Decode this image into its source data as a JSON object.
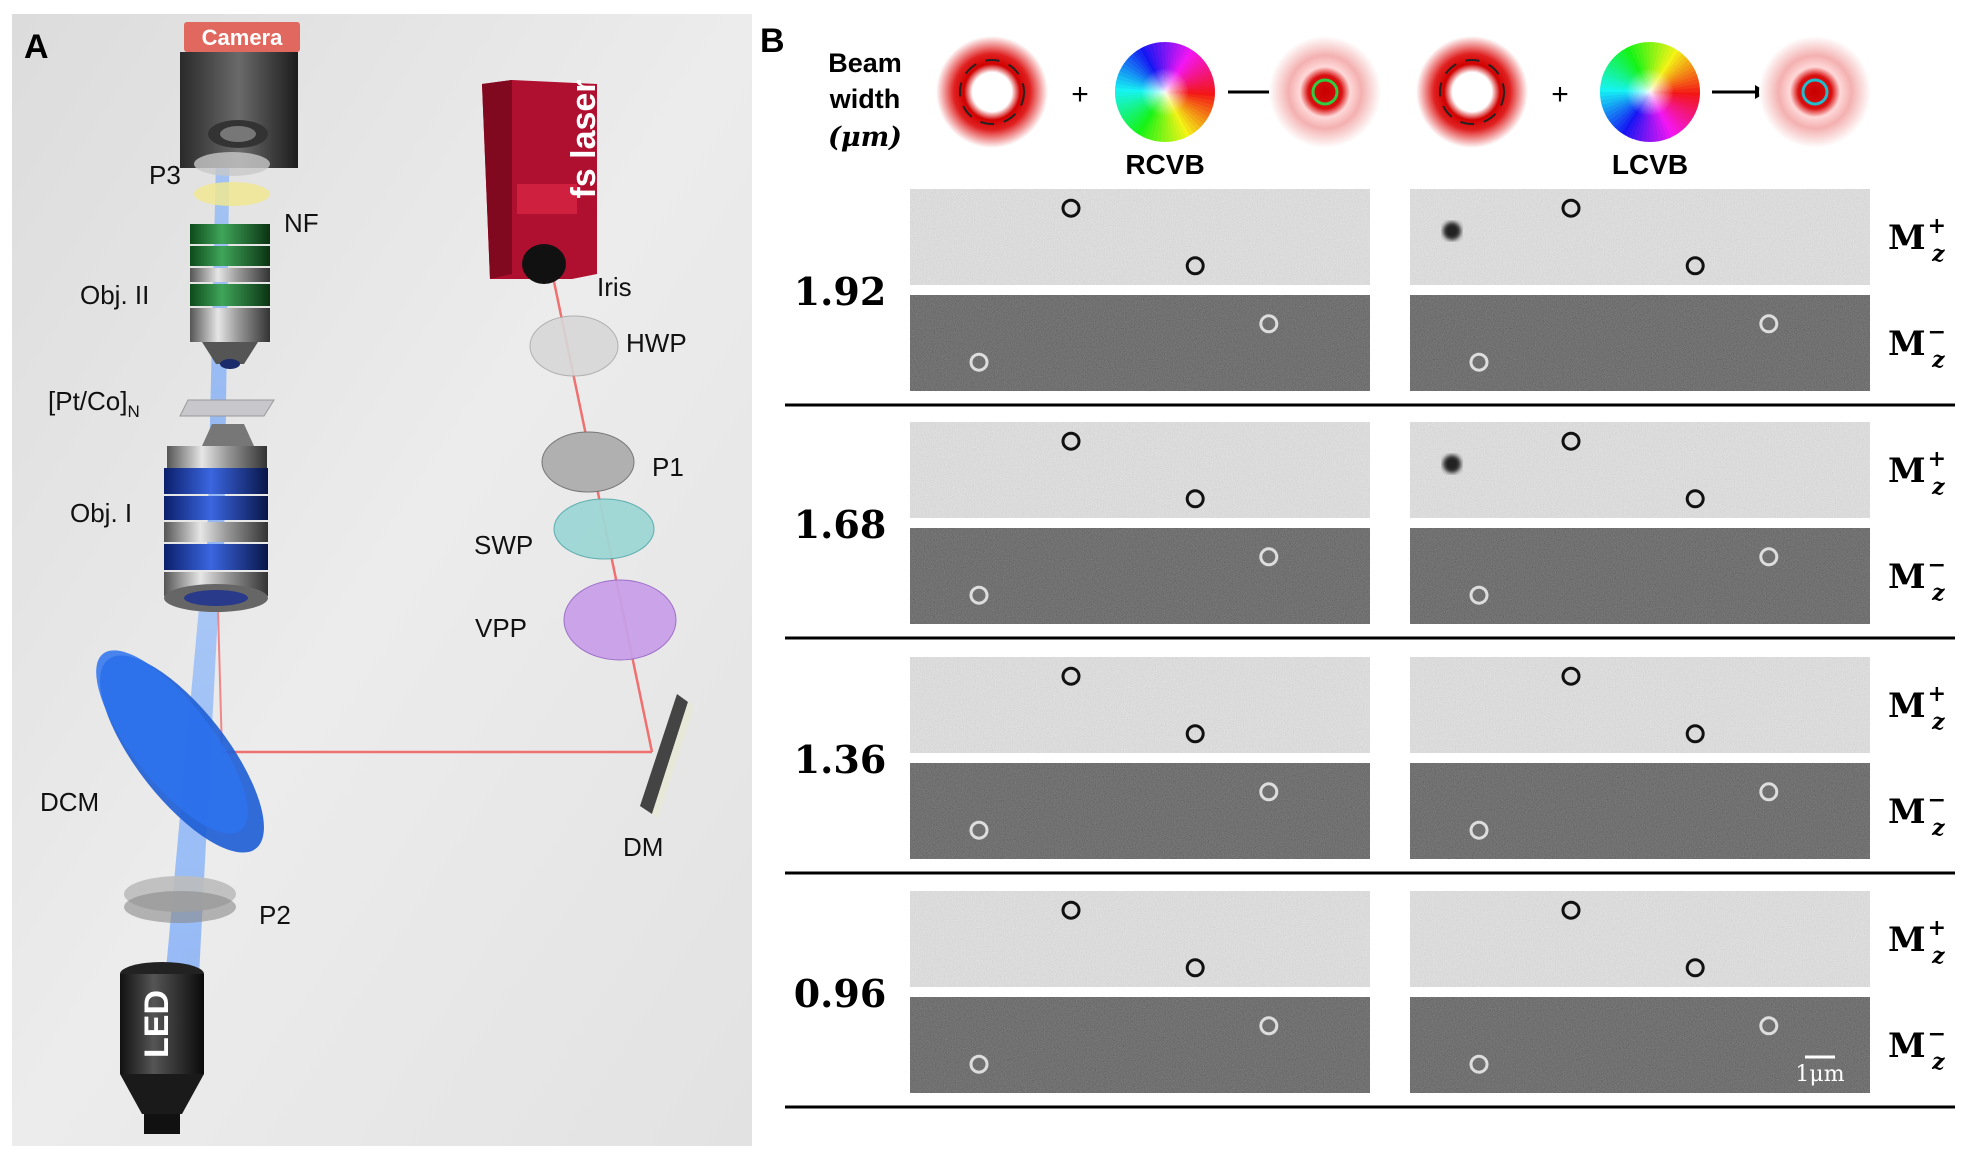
{
  "panel_a": {
    "label": "A",
    "camera": "Camera",
    "laser": "fs laser",
    "labels": {
      "p3": "P3",
      "nf": "NF",
      "obj2": "Obj. II",
      "sample": "[Pt/Co]",
      "sample_sub": "N",
      "obj1": "Obj. I",
      "dcm": "DCM",
      "p2": "P2",
      "led": "LED",
      "iris": "Iris",
      "hwp": "HWP",
      "p1": "P1",
      "swp": "SWP",
      "vpp": "VPP",
      "dm": "DM"
    }
  },
  "panel_b": {
    "label": "B",
    "header": {
      "beam_line1": "Beam",
      "beam_line2": "width",
      "beam_unit": "(μm)",
      "plus": "+",
      "rcvb": "RCVB",
      "lcvb": "LCVB"
    },
    "m_plus": "M",
    "m_minus": "M",
    "m_sub": "z",
    "m_sup_plus": "+",
    "m_sup_minus": "−",
    "rows": [
      {
        "width": "1.92"
      },
      {
        "width": "1.68"
      },
      {
        "width": "1.36"
      },
      {
        "width": "0.96"
      }
    ],
    "scale_bar": "1μm"
  },
  "colors": {
    "panel_a_bg": "#e8e8e8",
    "laser_body": "#b01030",
    "beam_red": "#f07070",
    "beam_blue": "#5aa0ff",
    "dcm_blue": "#1f5fd6"
  }
}
